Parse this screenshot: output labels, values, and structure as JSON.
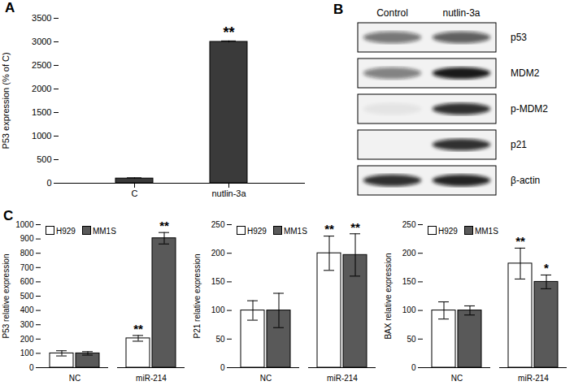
{
  "chart_data": [
    {
      "type": "bar",
      "panel": "A",
      "y_label": "P53 expression (% of C)",
      "categories": [
        "C",
        "nutlin-3a"
      ],
      "values": [
        100,
        3000
      ],
      "errors": [
        15,
        20
      ],
      "significance": [
        null,
        "**"
      ],
      "color": "#3a3a3a",
      "ylim": [
        0,
        3500
      ],
      "yticks": [
        0,
        500,
        1000,
        1500,
        2000,
        2500,
        3000,
        3500
      ]
    },
    {
      "type": "bar",
      "panel": "C",
      "y_label": "P53 relative expression",
      "categories": [
        "NC",
        "miR-214"
      ],
      "series": [
        {
          "name": "H929",
          "color": "#ffffff",
          "values": [
            100,
            205
          ],
          "errors": [
            18,
            20
          ],
          "significance": [
            null,
            "**"
          ]
        },
        {
          "name": "MM1S",
          "color": "#595959",
          "values": [
            100,
            905
          ],
          "errors": [
            12,
            40
          ],
          "significance": [
            null,
            "**"
          ]
        }
      ],
      "legend": "top-left",
      "ylim": [
        0,
        1000
      ],
      "yticks": [
        0,
        100,
        200,
        300,
        400,
        500,
        600,
        700,
        800,
        900,
        1000
      ]
    },
    {
      "type": "bar",
      "y_label": "P21 relative expression",
      "categories": [
        "NC",
        "miR-214"
      ],
      "series": [
        {
          "name": "H929",
          "color": "#ffffff",
          "values": [
            100,
            200
          ],
          "errors": [
            17,
            30
          ],
          "significance": [
            null,
            "**"
          ]
        },
        {
          "name": "MM1S",
          "color": "#595959",
          "values": [
            100,
            197
          ],
          "errors": [
            30,
            37
          ],
          "significance": [
            null,
            "**"
          ]
        }
      ],
      "legend": "top-left",
      "ylim": [
        0,
        250
      ],
      "yticks": [
        0,
        50,
        100,
        150,
        200,
        250
      ]
    },
    {
      "type": "bar",
      "y_label": "BAX relative expression",
      "categories": [
        "NC",
        "miR-214"
      ],
      "series": [
        {
          "name": "H929",
          "color": "#ffffff",
          "values": [
            100,
            182
          ],
          "errors": [
            15,
            27
          ],
          "significance": [
            null,
            "**"
          ]
        },
        {
          "name": "MM1S",
          "color": "#595959",
          "values": [
            100,
            150
          ],
          "errors": [
            8,
            12
          ],
          "significance": [
            null,
            "*"
          ]
        }
      ],
      "legend": "top-left",
      "ylim": [
        0,
        250
      ],
      "yticks": [
        0,
        50,
        100,
        150,
        200,
        250
      ]
    }
  ],
  "blot": {
    "panel": "B",
    "lanes": [
      "Control",
      "nutlin-3a"
    ],
    "rows": [
      {
        "label": "p53",
        "band_intensity": [
          0.55,
          0.65
        ]
      },
      {
        "label": "MDM2",
        "band_intensity": [
          0.5,
          0.95
        ]
      },
      {
        "label": "p-MDM2",
        "band_intensity": [
          0.06,
          0.85
        ]
      },
      {
        "label": "p21",
        "band_intensity": [
          0,
          0.85
        ]
      },
      {
        "label": "β-actin",
        "band_intensity": [
          0.85,
          0.9
        ]
      }
    ]
  }
}
